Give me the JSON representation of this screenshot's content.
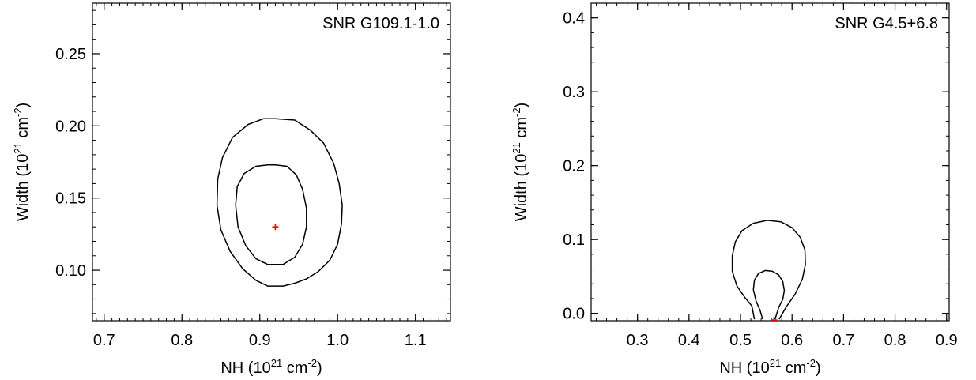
{
  "chart_data": [
    {
      "type": "contour",
      "title": "SNR G109.1-1.0",
      "xlabel": {
        "main": "NH (10",
        "sup1": "21",
        "mid": " cm",
        "sup2": "-2",
        "end": ")"
      },
      "ylabel": {
        "main": "Width (10",
        "sup1": "21",
        "mid": " cm",
        "sup2": "-2",
        "end": ")"
      },
      "xlim": [
        0.685,
        1.145
      ],
      "ylim": [
        0.065,
        0.285
      ],
      "xticks": [
        0.7,
        0.8,
        0.9,
        1.0,
        1.1
      ],
      "xtick_labels": [
        "0.7",
        "0.8",
        "0.9",
        "1.0",
        "1.1"
      ],
      "yticks": [
        0.1,
        0.15,
        0.2,
        0.25
      ],
      "ytick_labels": [
        "0.10",
        "0.15",
        "0.20",
        "0.25"
      ],
      "xminor_step": 0.01,
      "yminor_step": 0.01,
      "best_fit": {
        "x": 0.92,
        "y": 0.13,
        "color": "#ff0000"
      },
      "contours": [
        {
          "level": "outer",
          "points": [
            [
              0.92,
              0.205
            ],
            [
              0.945,
              0.204
            ],
            [
              0.965,
              0.197
            ],
            [
              0.982,
              0.188
            ],
            [
              0.995,
              0.174
            ],
            [
              1.002,
              0.16
            ],
            [
              1.006,
              0.145
            ],
            [
              1.005,
              0.132
            ],
            [
              1.0,
              0.118
            ],
            [
              0.99,
              0.107
            ],
            [
              0.975,
              0.099
            ],
            [
              0.96,
              0.094
            ],
            [
              0.945,
              0.091
            ],
            [
              0.93,
              0.089
            ],
            [
              0.91,
              0.089
            ],
            [
              0.895,
              0.093
            ],
            [
              0.878,
              0.101
            ],
            [
              0.862,
              0.113
            ],
            [
              0.85,
              0.128
            ],
            [
              0.845,
              0.145
            ],
            [
              0.846,
              0.163
            ],
            [
              0.852,
              0.178
            ],
            [
              0.865,
              0.192
            ],
            [
              0.885,
              0.201
            ],
            [
              0.905,
              0.205
            ],
            [
              0.92,
              0.205
            ]
          ]
        },
        {
          "level": "inner",
          "points": [
            [
              0.92,
              0.173
            ],
            [
              0.935,
              0.172
            ],
            [
              0.947,
              0.166
            ],
            [
              0.955,
              0.156
            ],
            [
              0.96,
              0.143
            ],
            [
              0.96,
              0.13
            ],
            [
              0.955,
              0.118
            ],
            [
              0.945,
              0.109
            ],
            [
              0.93,
              0.104
            ],
            [
              0.91,
              0.104
            ],
            [
              0.895,
              0.108
            ],
            [
              0.882,
              0.117
            ],
            [
              0.872,
              0.13
            ],
            [
              0.869,
              0.145
            ],
            [
              0.871,
              0.158
            ],
            [
              0.88,
              0.167
            ],
            [
              0.895,
              0.172
            ],
            [
              0.91,
              0.173
            ],
            [
              0.92,
              0.173
            ]
          ]
        }
      ]
    },
    {
      "type": "contour",
      "title": "SNR G4.5+6.8",
      "xlabel": {
        "main": "NH (10",
        "sup1": "21",
        "mid": " cm",
        "sup2": "-2",
        "end": ")"
      },
      "ylabel": {
        "main": "Width (10",
        "sup1": "21",
        "mid": " cm",
        "sup2": "-2",
        "end": ")"
      },
      "xlim": [
        0.21,
        0.905
      ],
      "ylim": [
        -0.01,
        0.42
      ],
      "xticks": [
        0.3,
        0.4,
        0.5,
        0.6,
        0.7,
        0.8,
        0.9
      ],
      "xtick_labels": [
        "0.3",
        "0.4",
        "0.5",
        "0.6",
        "0.7",
        "0.8",
        "0.9"
      ],
      "yticks": [
        0.0,
        0.1,
        0.2,
        0.3,
        0.4
      ],
      "ytick_labels": [
        "0.0",
        "0.1",
        "0.2",
        "0.3",
        "0.4"
      ],
      "xminor_step": 0.02,
      "yminor_step": 0.02,
      "best_fit": {
        "x": 0.565,
        "y": -0.009,
        "color": "#ff0000"
      },
      "contours": [
        {
          "level": "outer",
          "points": [
            [
              0.527,
              -0.008
            ],
            [
              0.522,
              0.01
            ],
            [
              0.508,
              0.022
            ],
            [
              0.493,
              0.037
            ],
            [
              0.484,
              0.057
            ],
            [
              0.484,
              0.078
            ],
            [
              0.49,
              0.097
            ],
            [
              0.503,
              0.112
            ],
            [
              0.525,
              0.122
            ],
            [
              0.552,
              0.126
            ],
            [
              0.578,
              0.124
            ],
            [
              0.6,
              0.116
            ],
            [
              0.616,
              0.103
            ],
            [
              0.625,
              0.086
            ],
            [
              0.626,
              0.066
            ],
            [
              0.62,
              0.046
            ],
            [
              0.606,
              0.026
            ],
            [
              0.588,
              0.008
            ],
            [
              0.575,
              -0.008
            ]
          ]
        },
        {
          "level": "inner",
          "points": [
            [
              0.543,
              -0.008
            ],
            [
              0.538,
              0.004
            ],
            [
              0.53,
              0.017
            ],
            [
              0.525,
              0.032
            ],
            [
              0.527,
              0.045
            ],
            [
              0.535,
              0.054
            ],
            [
              0.548,
              0.058
            ],
            [
              0.562,
              0.057
            ],
            [
              0.574,
              0.052
            ],
            [
              0.582,
              0.043
            ],
            [
              0.585,
              0.031
            ],
            [
              0.582,
              0.019
            ],
            [
              0.574,
              0.008
            ],
            [
              0.567,
              -0.008
            ]
          ]
        }
      ]
    }
  ]
}
